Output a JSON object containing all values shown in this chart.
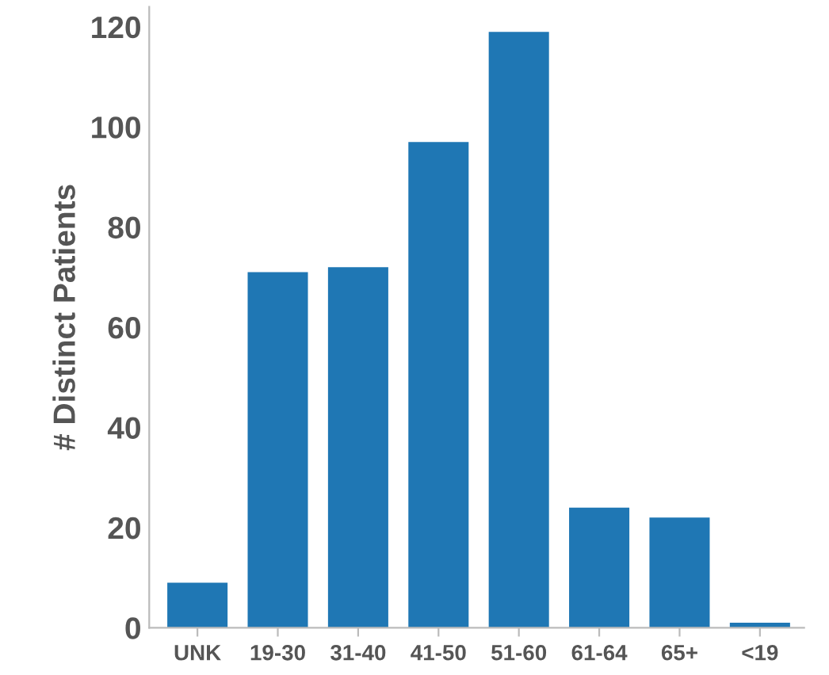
{
  "chart_data": {
    "type": "bar",
    "ylabel": "# Distinct Patients",
    "categories": [
      "UNK",
      "19-30",
      "31-40",
      "41-50",
      "51-60",
      "61-64",
      "65+",
      "<19"
    ],
    "values": [
      9,
      71,
      72,
      97,
      119,
      24,
      22,
      1
    ],
    "color": "#1f77b4",
    "ylim": [
      0,
      124
    ],
    "yticks": [
      0,
      20,
      40,
      60,
      80,
      100,
      120
    ],
    "grid": false
  }
}
